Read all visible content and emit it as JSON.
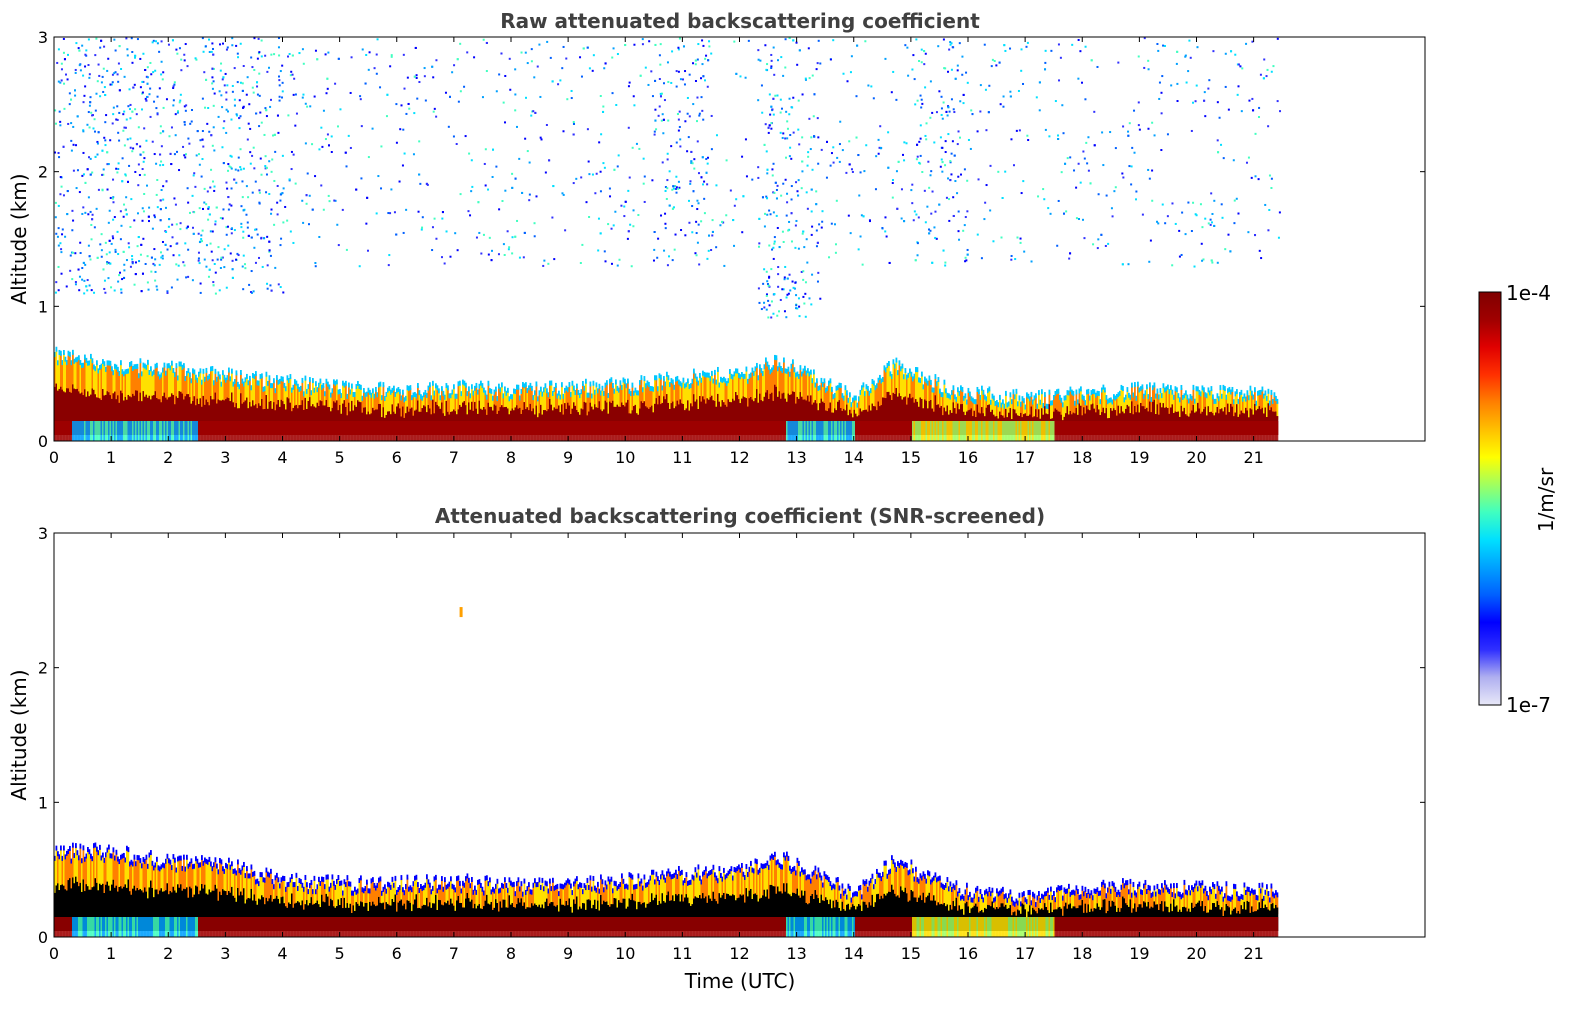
{
  "chart_data": [
    {
      "type": "heatmap",
      "title": "Raw attenuated backscattering coefficient",
      "ylabel": "Altitude (km)",
      "xlabel": "",
      "xlim": [
        0,
        24
      ],
      "ylim": [
        0,
        3
      ],
      "data_end_hour": 21.45,
      "xticks": [
        "0",
        "1",
        "2",
        "3",
        "4",
        "5",
        "6",
        "7",
        "8",
        "9",
        "10",
        "11",
        "12",
        "13",
        "14",
        "15",
        "16",
        "17",
        "18",
        "19",
        "20",
        "21"
      ],
      "yticks": [
        "0",
        "1",
        "2",
        "3"
      ],
      "boundary_layer_top_km": [
        {
          "x": 0,
          "y": 0.62
        },
        {
          "x": 1,
          "y": 0.55
        },
        {
          "x": 2,
          "y": 0.52
        },
        {
          "x": 3,
          "y": 0.47
        },
        {
          "x": 4,
          "y": 0.42
        },
        {
          "x": 5,
          "y": 0.38
        },
        {
          "x": 6,
          "y": 0.36
        },
        {
          "x": 7,
          "y": 0.38
        },
        {
          "x": 8,
          "y": 0.36
        },
        {
          "x": 9,
          "y": 0.38
        },
        {
          "x": 10,
          "y": 0.4
        },
        {
          "x": 11,
          "y": 0.45
        },
        {
          "x": 12,
          "y": 0.48
        },
        {
          "x": 12.7,
          "y": 0.58
        },
        {
          "x": 13,
          "y": 0.52
        },
        {
          "x": 14,
          "y": 0.3
        },
        {
          "x": 14.7,
          "y": 0.55
        },
        {
          "x": 15.5,
          "y": 0.4
        },
        {
          "x": 16,
          "y": 0.34
        },
        {
          "x": 17,
          "y": 0.3
        },
        {
          "x": 18,
          "y": 0.33
        },
        {
          "x": 19,
          "y": 0.36
        },
        {
          "x": 20,
          "y": 0.34
        },
        {
          "x": 21.45,
          "y": 0.33
        }
      ]
    },
    {
      "type": "heatmap",
      "title": "Attenuated backscattering coefficient (SNR-screened)",
      "ylabel": "Altitude (km)",
      "xlabel": "Time (UTC)",
      "xlim": [
        0,
        24
      ],
      "ylim": [
        0,
        3
      ],
      "data_end_hour": 21.45,
      "xticks": [
        "0",
        "1",
        "2",
        "3",
        "4",
        "5",
        "6",
        "7",
        "8",
        "9",
        "10",
        "11",
        "12",
        "13",
        "14",
        "15",
        "16",
        "17",
        "18",
        "19",
        "20",
        "21"
      ],
      "yticks": [
        "0",
        "1",
        "2",
        "3"
      ],
      "boundary_layer_top_km": [
        {
          "x": 0,
          "y": 0.62
        },
        {
          "x": 1,
          "y": 0.62
        },
        {
          "x": 2,
          "y": 0.55
        },
        {
          "x": 3,
          "y": 0.52
        },
        {
          "x": 4,
          "y": 0.4
        },
        {
          "x": 5,
          "y": 0.38
        },
        {
          "x": 6,
          "y": 0.38
        },
        {
          "x": 7,
          "y": 0.4
        },
        {
          "x": 8,
          "y": 0.36
        },
        {
          "x": 9,
          "y": 0.38
        },
        {
          "x": 10,
          "y": 0.4
        },
        {
          "x": 11,
          "y": 0.45
        },
        {
          "x": 12,
          "y": 0.48
        },
        {
          "x": 12.7,
          "y": 0.58
        },
        {
          "x": 13,
          "y": 0.52
        },
        {
          "x": 14,
          "y": 0.3
        },
        {
          "x": 14.7,
          "y": 0.55
        },
        {
          "x": 15.5,
          "y": 0.4
        },
        {
          "x": 16,
          "y": 0.32
        },
        {
          "x": 17,
          "y": 0.28
        },
        {
          "x": 18,
          "y": 0.33
        },
        {
          "x": 19,
          "y": 0.37
        },
        {
          "x": 20,
          "y": 0.34
        },
        {
          "x": 21.45,
          "y": 0.33
        }
      ]
    }
  ],
  "colorbar": {
    "max_label": "1e-4",
    "min_label": "1e-7",
    "unit_label": "1/m/sr",
    "colors": [
      "#e8e8f8",
      "#b0b0f0",
      "#3030ff",
      "#0000ff",
      "#0060ff",
      "#00a0ff",
      "#00e0ff",
      "#40ffc0",
      "#a0ff60",
      "#ffff00",
      "#ffc000",
      "#ff8000",
      "#ff3000",
      "#e00000",
      "#a00000",
      "#800000"
    ]
  }
}
